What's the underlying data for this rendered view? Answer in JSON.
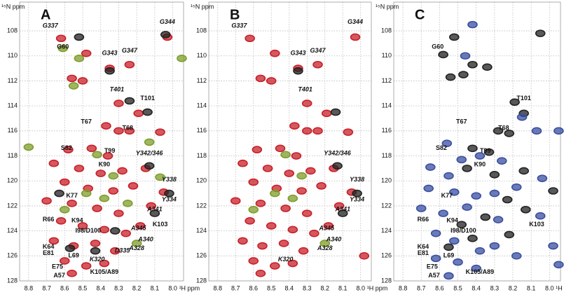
{
  "chart_data": [
    {
      "type": "scatter",
      "panel_label": "A",
      "y_label": "¹⁵N ppm",
      "x_label": "¹H ppm",
      "xlim": [
        8.85,
        7.94
      ],
      "ylim": [
        128,
        105.7
      ],
      "xticks": [
        8.8,
        8.7,
        8.6,
        8.5,
        8.4,
        8.3,
        8.2,
        8.1,
        {
          "value": 8,
          "label": "8.0"
        }
      ],
      "yticks": [
        108,
        110,
        112,
        114,
        116,
        118,
        120,
        122,
        124,
        126,
        128
      ],
      "grid": true,
      "series": [
        {
          "color": "#c8202a",
          "x": [
            8.62,
            8.48,
            8.35,
            8.24,
            8.56,
            8.5,
            8.03,
            8.3,
            8.19,
            8.37,
            8.3,
            8.24,
            8.07,
            8.58,
            8.45,
            8.36,
            8.66,
            8.52,
            8.4,
            8.28,
            8.15,
            8.6,
            8.47,
            8.33,
            8.22,
            8.05,
            8.7,
            8.56,
            8.42,
            8.3,
            8.12,
            8.62,
            8.5,
            8.38,
            8.26,
            8.18,
            8.66,
            8.55,
            8.43,
            8.32,
            8.6,
            8.48,
            8.38,
            8.56
          ],
          "y": [
            108.6,
            109.8,
            111,
            110.7,
            111.8,
            112,
            108.5,
            113.8,
            114.6,
            115.6,
            116,
            116,
            116.1,
            117.5,
            117.4,
            118,
            118.6,
            119,
            119.4,
            119.2,
            119,
            120.1,
            120.6,
            120.8,
            120.4,
            120.9,
            121.6,
            121.8,
            122.2,
            122.6,
            122,
            123.2,
            123.6,
            123.9,
            124.2,
            123.6,
            124.8,
            125.2,
            125,
            125.6,
            126.4,
            126.8,
            126.6,
            127.4
          ]
        },
        {
          "color": "#7f9d2c",
          "x": [
            8.61,
            8.52,
            8.55,
            8.8,
            8.42,
            8.33,
            8.48,
            8.38,
            8.25,
            8.6,
            8.2,
            7.95,
            8.13,
            8.07
          ],
          "y": [
            109.4,
            110.2,
            112.4,
            117.3,
            117.9,
            119.6,
            121,
            121.4,
            121.8,
            122.3,
            125,
            110.2,
            116.9,
            119.7
          ]
        },
        {
          "color": "#222222",
          "x": [
            8.52,
            8.04,
            8.35,
            8.24,
            8.14,
            8.13,
            8.1,
            8.02,
            8.43,
            8.57,
            8.63,
            8.32
          ],
          "y": [
            108.5,
            108.3,
            111.2,
            113.6,
            114.5,
            118.8,
            122.6,
            121,
            125.6,
            125.4,
            121,
            124
          ]
        }
      ],
      "annotations": [
        {
          "text": "G337",
          "x": 8.68,
          "y": 107.6,
          "italic": true
        },
        {
          "text": "G344",
          "x": 8.03,
          "y": 107.3,
          "italic": true
        },
        {
          "text": "G60",
          "x": 8.61,
          "y": 109.3,
          "italic": false
        },
        {
          "text": "G343",
          "x": 8.35,
          "y": 109.8,
          "italic": true
        },
        {
          "text": "G347",
          "x": 8.24,
          "y": 109.6,
          "italic": true
        },
        {
          "text": "T401",
          "x": 8.31,
          "y": 112.7,
          "italic": true
        },
        {
          "text": "T101",
          "x": 8.14,
          "y": 113.4,
          "italic": false
        },
        {
          "text": "T67",
          "x": 8.48,
          "y": 115.3,
          "italic": false
        },
        {
          "text": "T68",
          "x": 8.25,
          "y": 115.8,
          "italic": false
        },
        {
          "text": "S82",
          "x": 8.59,
          "y": 117.4,
          "italic": false
        },
        {
          "text": "T99",
          "x": 8.35,
          "y": 117.6,
          "italic": false
        },
        {
          "text": "Y342/346",
          "x": 8.13,
          "y": 117.8,
          "italic": true
        },
        {
          "text": "K90",
          "x": 8.38,
          "y": 118.7,
          "italic": false
        },
        {
          "text": "Y338",
          "x": 8.02,
          "y": 119.9,
          "italic": true
        },
        {
          "text": "Y334",
          "x": 8.02,
          "y": 121.5,
          "italic": true
        },
        {
          "text": "K77",
          "x": 8.56,
          "y": 121.2,
          "italic": false
        },
        {
          "text": "A341",
          "x": 8.1,
          "y": 122.3,
          "italic": true
        },
        {
          "text": "K103",
          "x": 8.07,
          "y": 123.5,
          "italic": false
        },
        {
          "text": "R66",
          "x": 8.69,
          "y": 123.1,
          "italic": false
        },
        {
          "text": "K94",
          "x": 8.53,
          "y": 123.2,
          "italic": false
        },
        {
          "text": "I98/D100",
          "x": 8.47,
          "y": 124,
          "italic": false
        },
        {
          "text": "A345",
          "x": 8.19,
          "y": 123.8,
          "italic": true
        },
        {
          "text": "A340",
          "x": 8.15,
          "y": 124.7,
          "italic": true
        },
        {
          "text": "K64",
          "x": 8.69,
          "y": 125.3,
          "italic": false
        },
        {
          "text": "D335",
          "x": 8.28,
          "y": 125.6,
          "italic": true
        },
        {
          "text": "A328",
          "x": 8.2,
          "y": 125.4,
          "italic": true
        },
        {
          "text": "E81",
          "x": 8.69,
          "y": 125.8,
          "italic": false
        },
        {
          "text": "L69",
          "x": 8.55,
          "y": 126,
          "italic": false
        },
        {
          "text": "K320",
          "x": 8.42,
          "y": 126.3,
          "italic": true
        },
        {
          "text": "E75",
          "x": 8.64,
          "y": 126.9,
          "italic": false
        },
        {
          "text": "A57",
          "x": 8.63,
          "y": 127.6,
          "italic": false
        },
        {
          "text": "K105/A89",
          "x": 8.38,
          "y": 127.3,
          "italic": false
        }
      ]
    },
    {
      "type": "scatter",
      "panel_label": "B",
      "y_label": "¹⁵N ppm",
      "x_label": "¹H ppm",
      "xlim": [
        8.85,
        7.94
      ],
      "ylim": [
        128,
        105.7
      ],
      "xticks": [
        8.8,
        8.7,
        8.6,
        8.5,
        8.4,
        8.3,
        8.2,
        8.1,
        {
          "value": 8,
          "label": "8.0"
        }
      ],
      "yticks": [
        108,
        110,
        112,
        114,
        116,
        118,
        120,
        122,
        124,
        126,
        128
      ],
      "grid": true,
      "series": [
        {
          "color": "#c8202a",
          "x": [
            8.62,
            8.48,
            8.35,
            8.24,
            8.56,
            8.5,
            8.03,
            8.3,
            8.19,
            8.37,
            8.3,
            8.24,
            8.07,
            8.58,
            8.45,
            8.36,
            8.66,
            8.52,
            8.4,
            8.28,
            8.15,
            8.6,
            8.47,
            8.33,
            8.22,
            8.05,
            8.7,
            8.56,
            8.42,
            8.3,
            8.12,
            8.62,
            8.5,
            8.38,
            8.26,
            8.18,
            8.66,
            8.55,
            8.43,
            8.32,
            8.6,
            8.48,
            8.38,
            8.56,
            7.98
          ],
          "y": [
            108.6,
            109.8,
            111,
            110.7,
            111.8,
            112,
            108.5,
            113.8,
            114.6,
            115.6,
            116,
            116,
            116.1,
            117.5,
            117.4,
            118,
            118.6,
            119,
            119.4,
            119.2,
            119,
            120.1,
            120.6,
            120.8,
            120.4,
            120.9,
            121.6,
            121.8,
            122.2,
            122.6,
            122,
            123.2,
            123.6,
            123.9,
            124.2,
            123.6,
            124.8,
            125.2,
            125,
            125.6,
            126.4,
            126.8,
            126.6,
            127.4,
            126
          ]
        },
        {
          "color": "#7f9d2c",
          "x": [
            8.42,
            8.33,
            8.48,
            8.38,
            8.6,
            8.2
          ],
          "y": [
            117.9,
            119.6,
            121,
            121.4,
            122.3,
            125
          ]
        },
        {
          "color": "#222222",
          "x": [
            8.35,
            8.14,
            8.13,
            8.1,
            8.02
          ],
          "y": [
            111.2,
            114.5,
            118.8,
            122.6,
            121
          ]
        }
      ],
      "annotations": [
        {
          "text": "G337",
          "x": 8.68,
          "y": 107.6,
          "italic": true
        },
        {
          "text": "G344",
          "x": 8.03,
          "y": 107.3,
          "italic": true
        },
        {
          "text": "G343",
          "x": 8.35,
          "y": 109.8,
          "italic": true
        },
        {
          "text": "G347",
          "x": 8.24,
          "y": 109.6,
          "italic": true
        },
        {
          "text": "T401",
          "x": 8.31,
          "y": 112.7,
          "italic": true
        },
        {
          "text": "Y342/346",
          "x": 8.13,
          "y": 117.8,
          "italic": true
        },
        {
          "text": "Y338",
          "x": 8.02,
          "y": 119.9,
          "italic": true
        },
        {
          "text": "Y334",
          "x": 8.02,
          "y": 121.5,
          "italic": true
        },
        {
          "text": "A341",
          "x": 8.1,
          "y": 122.3,
          "italic": true
        },
        {
          "text": "A345",
          "x": 8.19,
          "y": 123.8,
          "italic": true
        },
        {
          "text": "A340",
          "x": 8.15,
          "y": 124.7,
          "italic": true
        },
        {
          "text": "A328",
          "x": 8.2,
          "y": 125.4,
          "italic": true
        },
        {
          "text": "K320",
          "x": 8.42,
          "y": 126.3,
          "italic": true
        }
      ]
    },
    {
      "type": "scatter",
      "panel_label": "C",
      "y_label": "¹⁵N ppm",
      "x_label": "¹H ppm",
      "xlim": [
        8.85,
        7.94
      ],
      "ylim": [
        128,
        105.7
      ],
      "xticks": [
        8.8,
        8.7,
        8.6,
        8.5,
        8.4,
        8.3,
        8.2,
        8.1,
        {
          "value": 8,
          "label": "8.0"
        }
      ],
      "yticks": [
        108,
        110,
        112,
        114,
        116,
        118,
        120,
        122,
        124,
        126,
        128
      ],
      "grid": true,
      "series": [
        {
          "color": "#222222",
          "x": [
            8.52,
            8.05,
            8.58,
            8.42,
            8.34,
            8.54,
            8.47,
            8.19,
            8.14,
            8.28,
            8.22,
            8.42,
            8.33,
            8.45,
            8.3,
            8.14,
            8.23,
            8.13,
            8.35,
            8.48,
            8.42,
            8.22,
            8.55,
            7.98
          ],
          "y": [
            108.5,
            108.2,
            109.9,
            110.7,
            110.9,
            111.7,
            111.5,
            113.7,
            114.6,
            116,
            116.2,
            117.4,
            117.7,
            119,
            119.5,
            119.2,
            121.5,
            122.3,
            122.9,
            123.5,
            124.6,
            124.3,
            125.3,
            120.8
          ]
        },
        {
          "color": "#3a4fa0",
          "x": [
            8.42,
            8.46,
            8.15,
            8.07,
            7.95,
            8.56,
            8.48,
            8.38,
            8.65,
            8.55,
            8.26,
            8.04,
            8.66,
            8.52,
            8.4,
            8.3,
            8.18,
            8.7,
            8.58,
            8.45,
            8.28,
            8.05,
            8.62,
            8.52,
            8.38,
            8.3,
            8.62,
            8.5,
            8.4,
            8.55,
            7.95,
            7.98,
            8.18
          ],
          "y": [
            107.5,
            110,
            114.9,
            116,
            116,
            117,
            118.3,
            118,
            118.9,
            119.6,
            118.4,
            119.8,
            120.6,
            120.9,
            121.2,
            121,
            120.5,
            122.2,
            122.6,
            122.1,
            123.1,
            122.8,
            124.2,
            124.8,
            125.6,
            125.2,
            126.2,
            126.5,
            127,
            127.6,
            126.7,
            125.2,
            126
          ]
        }
      ],
      "annotations": [
        {
          "text": "G60",
          "x": 8.61,
          "y": 109.3,
          "italic": false
        },
        {
          "text": "T101",
          "x": 8.14,
          "y": 113.4,
          "italic": false
        },
        {
          "text": "T67",
          "x": 8.48,
          "y": 115.3,
          "italic": false
        },
        {
          "text": "T68",
          "x": 8.25,
          "y": 115.8,
          "italic": false
        },
        {
          "text": "S82",
          "x": 8.59,
          "y": 117.4,
          "italic": false
        },
        {
          "text": "T99",
          "x": 8.35,
          "y": 117.6,
          "italic": false
        },
        {
          "text": "K90",
          "x": 8.38,
          "y": 118.7,
          "italic": false
        },
        {
          "text": "K77",
          "x": 8.56,
          "y": 121.2,
          "italic": false
        },
        {
          "text": "R66",
          "x": 8.69,
          "y": 123.1,
          "italic": false
        },
        {
          "text": "K94",
          "x": 8.53,
          "y": 123.2,
          "italic": false
        },
        {
          "text": "I98/D100",
          "x": 8.47,
          "y": 124,
          "italic": false
        },
        {
          "text": "K103",
          "x": 8.07,
          "y": 123.5,
          "italic": false
        },
        {
          "text": "K64",
          "x": 8.69,
          "y": 125.3,
          "italic": false
        },
        {
          "text": "E81",
          "x": 8.69,
          "y": 125.8,
          "italic": false
        },
        {
          "text": "L69",
          "x": 8.55,
          "y": 126,
          "italic": false
        },
        {
          "text": "E75",
          "x": 8.64,
          "y": 126.9,
          "italic": false
        },
        {
          "text": "A57",
          "x": 8.63,
          "y": 127.6,
          "italic": false
        },
        {
          "text": "K105/A89",
          "x": 8.38,
          "y": 127.3,
          "italic": false
        }
      ]
    }
  ]
}
